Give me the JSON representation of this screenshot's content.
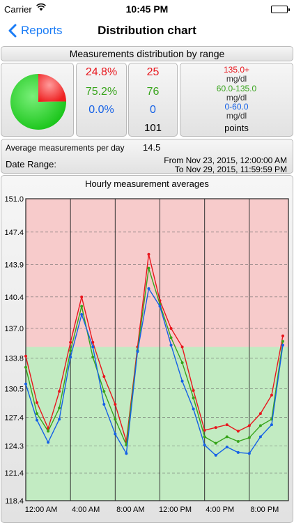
{
  "status_bar": {
    "carrier": "Carrier",
    "time": "10:45 PM"
  },
  "nav": {
    "back_label": "Reports",
    "title": "Distribution chart"
  },
  "section_header": "Measurements distribution by range",
  "distribution": {
    "high": {
      "percent": "24.8%",
      "count": "25",
      "range": "135.0+",
      "unit": "mg/dl",
      "color": "#e8161d",
      "fraction": 0.248
    },
    "normal": {
      "percent": "75.2%",
      "count": "76",
      "range": "60.0-135.0",
      "unit": "mg/dl",
      "color": "#38a41c",
      "fraction": 0.752
    },
    "low": {
      "percent": "0.0%",
      "count": "0",
      "range": "0-60.0",
      "unit": "mg/dl",
      "color": "#1561e6",
      "fraction": 0.0
    },
    "total": "101",
    "total_label": "points"
  },
  "average": {
    "label": "Average measurements per day",
    "value": "14.5"
  },
  "date_range": {
    "label": "Date Range:",
    "from": "From Nov 23, 2015, 12:00:00 AM",
    "to": "To Nov 29, 2015, 11:59:59 PM"
  },
  "chart_data": {
    "type": "line",
    "title": "Hourly measurement averages",
    "ylim": [
      118.4,
      151.0
    ],
    "y_ticks": [
      "151.0",
      "147.4",
      "143.9",
      "140.4",
      "137.0",
      "133.8",
      "130.5",
      "127.4",
      "124.3",
      "121.4",
      "118.4"
    ],
    "x_tick_labels": [
      "12:00 AM",
      "4:00 AM",
      "8:00 AM",
      "12:00 PM",
      "4:00 PM",
      "8:00 PM"
    ],
    "xlim": [
      0,
      23.5
    ],
    "threshold": 135.0,
    "high_band_color": "#f7cbcb",
    "low_band_color": "#c2ebc2",
    "grid": true,
    "series": [
      {
        "color": "#e8161d",
        "x": [
          0,
          1,
          2,
          3,
          4,
          5,
          6,
          7,
          8,
          9,
          10,
          11,
          12,
          13,
          14,
          15,
          16,
          17,
          18,
          19,
          20,
          21,
          22,
          23
        ],
        "values": [
          134.0,
          129.0,
          126.2,
          130.2,
          135.5,
          140.4,
          135.5,
          131.8,
          128.8,
          124.8,
          135.0,
          145.0,
          140.0,
          137.0,
          135.0,
          130.3,
          126.0,
          126.3,
          126.6,
          125.9,
          126.5,
          127.8,
          129.8,
          136.2
        ]
      },
      {
        "color": "#38a41c",
        "x": [
          0,
          1,
          2,
          3,
          4,
          5,
          6,
          7,
          8,
          9,
          10,
          11,
          12,
          13,
          14,
          15,
          16,
          17,
          18,
          19,
          20,
          21,
          22,
          23
        ],
        "values": [
          132.8,
          127.8,
          125.9,
          128.4,
          134.6,
          139.4,
          133.9,
          130.2,
          127.2,
          124.4,
          134.6,
          143.5,
          139.6,
          136.0,
          133.3,
          129.5,
          125.3,
          124.6,
          125.3,
          124.8,
          125.2,
          126.5,
          127.2,
          135.6
        ]
      },
      {
        "color": "#1561e6",
        "x": [
          0,
          1,
          2,
          3,
          4,
          5,
          6,
          7,
          8,
          9,
          10,
          11,
          12,
          13,
          14,
          15,
          16,
          17,
          18,
          19,
          20,
          21,
          22,
          23
        ],
        "values": [
          131.0,
          127.1,
          124.7,
          127.2,
          133.9,
          138.5,
          135.0,
          128.8,
          125.6,
          123.5,
          134.5,
          141.3,
          139.4,
          135.2,
          131.3,
          128.3,
          124.4,
          123.3,
          124.2,
          123.6,
          123.5,
          125.3,
          126.6,
          135.2
        ]
      }
    ]
  }
}
